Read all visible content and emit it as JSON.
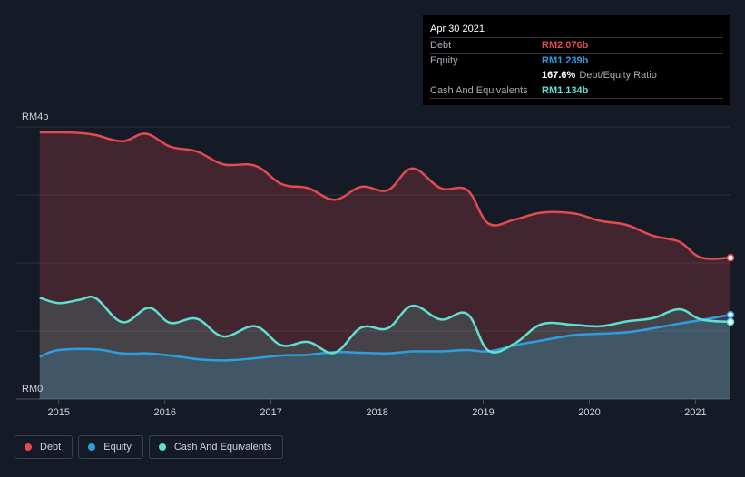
{
  "chart_data": {
    "type": "area",
    "x_unit": "year (decimal)",
    "xlim": [
      2014.6,
      2021.33
    ],
    "ylim": [
      0,
      4
    ],
    "y_axis_labels": {
      "top": "RM4b",
      "bottom": "RM0"
    },
    "x_ticks": [
      {
        "value": 2015,
        "label": "2015"
      },
      {
        "value": 2016,
        "label": "2016"
      },
      {
        "value": 2017,
        "label": "2017"
      },
      {
        "value": 2018,
        "label": "2018"
      },
      {
        "value": 2019,
        "label": "2019"
      },
      {
        "value": 2020,
        "label": "2020"
      },
      {
        "value": 2021,
        "label": "2021"
      }
    ],
    "grid": true,
    "legend_position": "bottom-left",
    "series": [
      {
        "name": "Debt",
        "color": "#e24b4f",
        "points": [
          [
            2014.82,
            3.92
          ],
          [
            2015.0,
            3.92
          ],
          [
            2015.2,
            3.91
          ],
          [
            2015.35,
            3.88
          ],
          [
            2015.6,
            3.79
          ],
          [
            2015.82,
            3.9
          ],
          [
            2016.05,
            3.71
          ],
          [
            2016.3,
            3.64
          ],
          [
            2016.55,
            3.45
          ],
          [
            2016.85,
            3.43
          ],
          [
            2017.1,
            3.16
          ],
          [
            2017.35,
            3.1
          ],
          [
            2017.6,
            2.93
          ],
          [
            2017.85,
            3.12
          ],
          [
            2018.1,
            3.07
          ],
          [
            2018.33,
            3.39
          ],
          [
            2018.6,
            3.1
          ],
          [
            2018.85,
            3.07
          ],
          [
            2019.05,
            2.58
          ],
          [
            2019.3,
            2.64
          ],
          [
            2019.55,
            2.74
          ],
          [
            2019.85,
            2.73
          ],
          [
            2020.1,
            2.62
          ],
          [
            2020.35,
            2.56
          ],
          [
            2020.6,
            2.4
          ],
          [
            2020.85,
            2.31
          ],
          [
            2021.05,
            2.08
          ],
          [
            2021.33,
            2.076
          ]
        ]
      },
      {
        "name": "Equity",
        "color": "#2d9ee0",
        "points": [
          [
            2014.82,
            0.62
          ],
          [
            2015.0,
            0.72
          ],
          [
            2015.35,
            0.73
          ],
          [
            2015.6,
            0.67
          ],
          [
            2015.85,
            0.67
          ],
          [
            2016.1,
            0.63
          ],
          [
            2016.35,
            0.58
          ],
          [
            2016.6,
            0.57
          ],
          [
            2016.85,
            0.6
          ],
          [
            2017.1,
            0.64
          ],
          [
            2017.35,
            0.65
          ],
          [
            2017.6,
            0.69
          ],
          [
            2017.85,
            0.68
          ],
          [
            2018.1,
            0.67
          ],
          [
            2018.33,
            0.7
          ],
          [
            2018.6,
            0.7
          ],
          [
            2018.85,
            0.72
          ],
          [
            2019.05,
            0.7
          ],
          [
            2019.3,
            0.79
          ],
          [
            2019.55,
            0.86
          ],
          [
            2019.85,
            0.94
          ],
          [
            2020.1,
            0.96
          ],
          [
            2020.35,
            0.98
          ],
          [
            2020.6,
            1.04
          ],
          [
            2020.85,
            1.11
          ],
          [
            2021.05,
            1.16
          ],
          [
            2021.33,
            1.239
          ]
        ]
      },
      {
        "name": "Cash And Equivalents",
        "color": "#5ee1d1",
        "points": [
          [
            2014.82,
            1.49
          ],
          [
            2015.0,
            1.41
          ],
          [
            2015.2,
            1.46
          ],
          [
            2015.35,
            1.48
          ],
          [
            2015.6,
            1.13
          ],
          [
            2015.85,
            1.34
          ],
          [
            2016.05,
            1.12
          ],
          [
            2016.3,
            1.18
          ],
          [
            2016.55,
            0.92
          ],
          [
            2016.85,
            1.07
          ],
          [
            2017.1,
            0.79
          ],
          [
            2017.35,
            0.84
          ],
          [
            2017.6,
            0.68
          ],
          [
            2017.85,
            1.05
          ],
          [
            2018.1,
            1.04
          ],
          [
            2018.33,
            1.37
          ],
          [
            2018.6,
            1.17
          ],
          [
            2018.85,
            1.25
          ],
          [
            2019.05,
            0.71
          ],
          [
            2019.3,
            0.82
          ],
          [
            2019.55,
            1.1
          ],
          [
            2019.85,
            1.09
          ],
          [
            2020.1,
            1.07
          ],
          [
            2020.35,
            1.14
          ],
          [
            2020.6,
            1.19
          ],
          [
            2020.85,
            1.32
          ],
          [
            2021.05,
            1.17
          ],
          [
            2021.33,
            1.134
          ]
        ]
      }
    ]
  },
  "tooltip": {
    "date": "Apr 30 2021",
    "rows": [
      {
        "label": "Debt",
        "value": "RM2.076b",
        "color": "#e24b4f"
      },
      {
        "label": "Equity",
        "value": "RM1.239b",
        "color": "#2d9ee0"
      }
    ],
    "ratio": {
      "value": "167.6%",
      "text": "Debt/Equity Ratio"
    },
    "cash": {
      "label": "Cash And Equivalents",
      "value": "RM1.134b",
      "color": "#5ee1d1"
    }
  },
  "legend": [
    {
      "label": "Debt",
      "color": "#e24b4f"
    },
    {
      "label": "Equity",
      "color": "#2d9ee0"
    },
    {
      "label": "Cash And Equivalents",
      "color": "#5ee1d1"
    }
  ]
}
